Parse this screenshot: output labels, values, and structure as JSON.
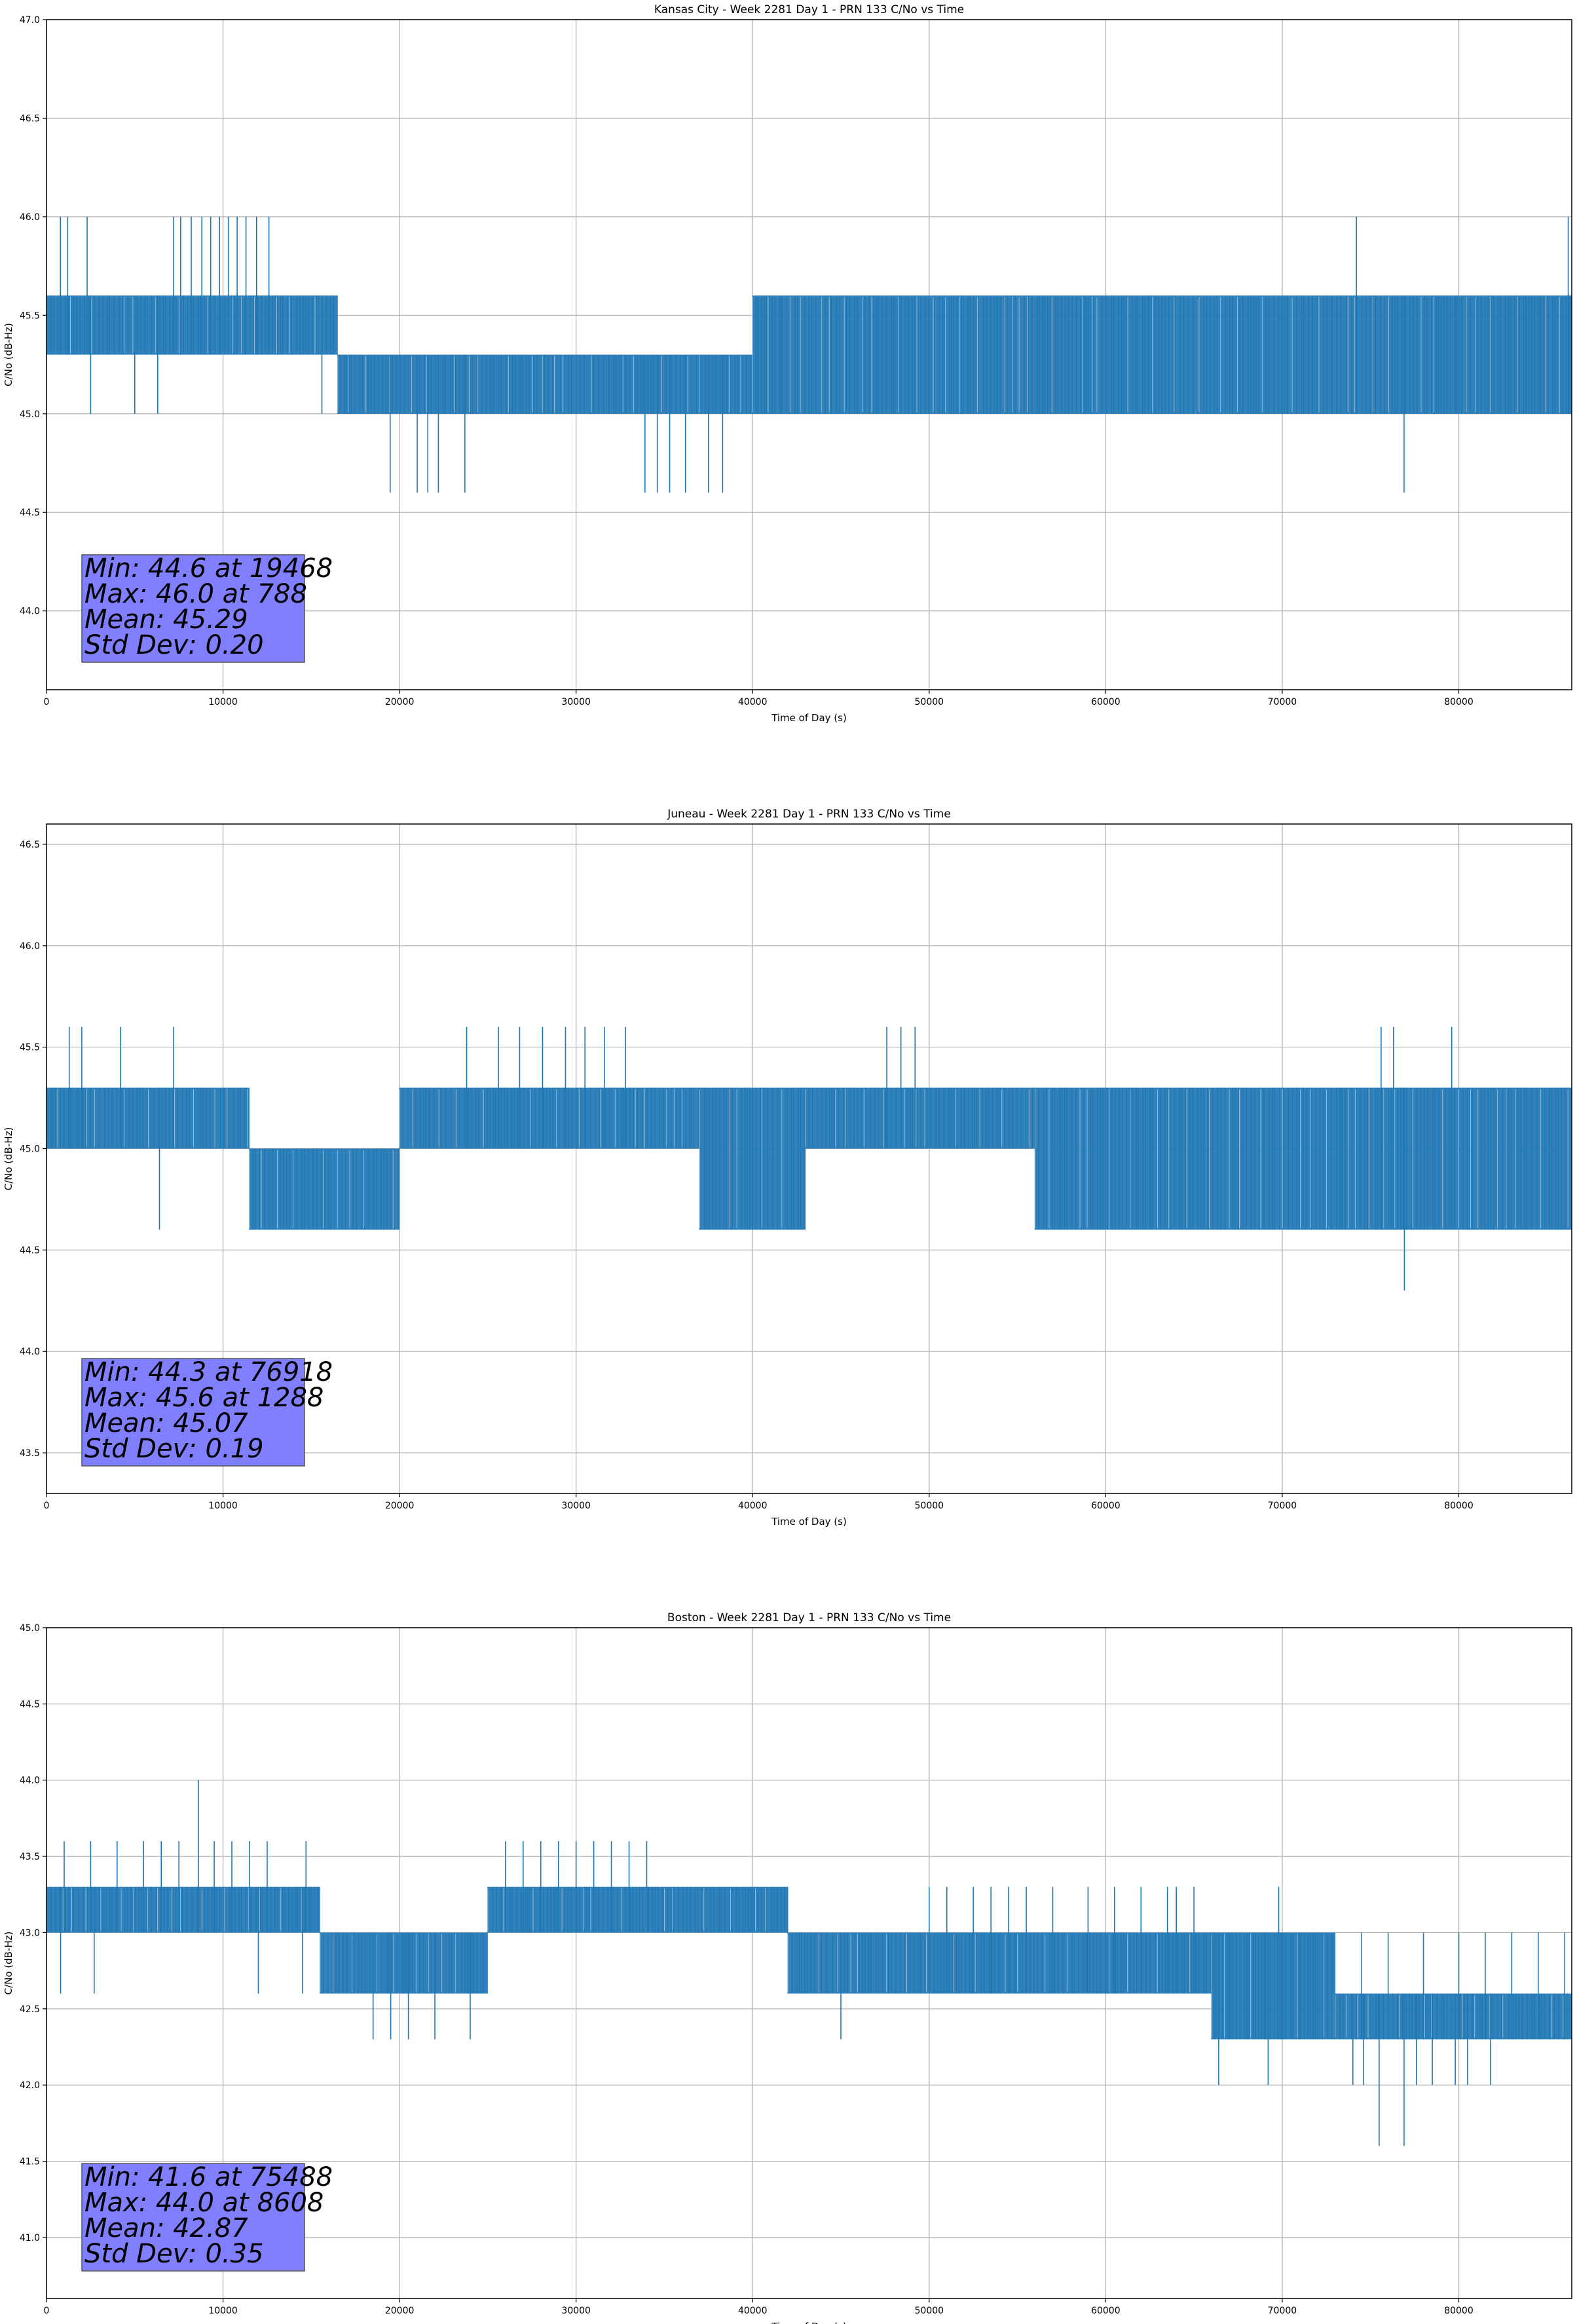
{
  "chart_data": [
    {
      "type": "line",
      "title": "Kansas City - Week 2281 Day 1 - PRN 133 C/No vs Time",
      "xlabel": "Time of Day (s)",
      "ylabel": "C/No (dB-Hz)",
      "xlim": [
        0,
        86400
      ],
      "ylim": [
        43.6,
        47.0
      ],
      "x_ticks": [
        0,
        10000,
        20000,
        30000,
        40000,
        50000,
        60000,
        70000,
        80000
      ],
      "y_ticks": [
        44.0,
        44.5,
        45.0,
        45.5,
        46.0,
        46.5,
        47.0
      ],
      "x_tick_labels": [
        "0",
        "10000",
        "20000",
        "30000",
        "40000",
        "50000",
        "60000",
        "70000",
        "80000"
      ],
      "y_tick_labels": [
        "44.0",
        "44.5",
        "45.0",
        "45.5",
        "46.0",
        "46.5",
        "47.0"
      ],
      "grid": true,
      "series_color": "#1f77b4",
      "segments": [
        {
          "x": [
            0,
            16500
          ],
          "lo": 45.3,
          "hi": 45.6
        },
        {
          "x": [
            16500,
            40000
          ],
          "lo": 45.0,
          "hi": 45.3
        },
        {
          "x": [
            40000,
            59500
          ],
          "lo": 45.0,
          "hi": 45.6
        },
        {
          "x": [
            59500,
            86400
          ],
          "lo": 45.0,
          "hi": 45.6
        }
      ],
      "spikes": [
        {
          "x": 788,
          "hi": 46.0
        },
        {
          "x": 1200,
          "hi": 46.0
        },
        {
          "x": 2300,
          "hi": 46.0
        },
        {
          "x": 7200,
          "hi": 46.0
        },
        {
          "x": 7600,
          "hi": 46.0
        },
        {
          "x": 8200,
          "hi": 46.0
        },
        {
          "x": 8800,
          "hi": 46.0
        },
        {
          "x": 9300,
          "hi": 46.0
        },
        {
          "x": 9800,
          "hi": 46.0
        },
        {
          "x": 10300,
          "hi": 46.0
        },
        {
          "x": 10800,
          "hi": 46.0
        },
        {
          "x": 11300,
          "hi": 46.0
        },
        {
          "x": 11900,
          "hi": 46.0
        },
        {
          "x": 12600,
          "hi": 46.0
        },
        {
          "x": 74200,
          "hi": 46.0
        },
        {
          "x": 86200,
          "hi": 46.0
        },
        {
          "x": 2500,
          "lo": 45.0
        },
        {
          "x": 5000,
          "lo": 45.0
        },
        {
          "x": 6300,
          "lo": 45.0
        },
        {
          "x": 15600,
          "lo": 45.0
        },
        {
          "x": 19468,
          "lo": 44.6
        },
        {
          "x": 21000,
          "lo": 44.6
        },
        {
          "x": 21600,
          "lo": 44.6
        },
        {
          "x": 22200,
          "lo": 44.6
        },
        {
          "x": 23700,
          "lo": 44.6
        },
        {
          "x": 33900,
          "lo": 44.6
        },
        {
          "x": 34600,
          "lo": 44.6
        },
        {
          "x": 35300,
          "lo": 44.6
        },
        {
          "x": 36200,
          "lo": 44.6
        },
        {
          "x": 37500,
          "lo": 44.6
        },
        {
          "x": 38300,
          "lo": 44.6
        },
        {
          "x": 76900,
          "lo": 44.6
        }
      ],
      "stats": [
        "Min: 44.6 at 19468",
        "Max: 46.0 at 788",
        "Mean: 45.29",
        "Std Dev: 0.20"
      ]
    },
    {
      "type": "line",
      "title": "Juneau - Week 2281 Day 1 - PRN 133 C/No vs Time",
      "xlabel": "Time of Day (s)",
      "ylabel": "C/No (dB-Hz)",
      "xlim": [
        0,
        86400
      ],
      "ylim": [
        43.3,
        46.6
      ],
      "x_ticks": [
        0,
        10000,
        20000,
        30000,
        40000,
        50000,
        60000,
        70000,
        80000
      ],
      "y_ticks": [
        43.5,
        44.0,
        44.5,
        45.0,
        45.5,
        46.0,
        46.5
      ],
      "x_tick_labels": [
        "0",
        "10000",
        "20000",
        "30000",
        "40000",
        "50000",
        "60000",
        "70000",
        "80000"
      ],
      "y_tick_labels": [
        "43.5",
        "44.0",
        "44.5",
        "45.0",
        "45.5",
        "46.0",
        "46.5"
      ],
      "grid": true,
      "series_color": "#1f77b4",
      "segments": [
        {
          "x": [
            0,
            11500
          ],
          "lo": 45.0,
          "hi": 45.3
        },
        {
          "x": [
            11500,
            20000
          ],
          "lo": 44.6,
          "hi": 45.0
        },
        {
          "x": [
            20000,
            37000
          ],
          "lo": 45.0,
          "hi": 45.3
        },
        {
          "x": [
            37000,
            43000
          ],
          "lo": 44.6,
          "hi": 45.3
        },
        {
          "x": [
            43000,
            56000
          ],
          "lo": 45.0,
          "hi": 45.3
        },
        {
          "x": [
            56000,
            67000
          ],
          "lo": 44.6,
          "hi": 45.3
        },
        {
          "x": [
            67000,
            80000
          ],
          "lo": 44.6,
          "hi": 45.3
        },
        {
          "x": [
            80000,
            86400
          ],
          "lo": 44.6,
          "hi": 45.3
        }
      ],
      "spikes": [
        {
          "x": 1288,
          "hi": 45.6
        },
        {
          "x": 2000,
          "hi": 45.6
        },
        {
          "x": 4200,
          "hi": 45.6
        },
        {
          "x": 7200,
          "hi": 45.6
        },
        {
          "x": 23800,
          "hi": 45.6
        },
        {
          "x": 25600,
          "hi": 45.6
        },
        {
          "x": 26800,
          "hi": 45.6
        },
        {
          "x": 28100,
          "hi": 45.6
        },
        {
          "x": 29400,
          "hi": 45.6
        },
        {
          "x": 30500,
          "hi": 45.6
        },
        {
          "x": 31600,
          "hi": 45.6
        },
        {
          "x": 32800,
          "hi": 45.6
        },
        {
          "x": 47600,
          "hi": 45.6
        },
        {
          "x": 48400,
          "hi": 45.6
        },
        {
          "x": 49200,
          "hi": 45.6
        },
        {
          "x": 75600,
          "hi": 45.6
        },
        {
          "x": 76300,
          "hi": 45.6
        },
        {
          "x": 79600,
          "hi": 45.6
        },
        {
          "x": 6400,
          "lo": 44.6
        },
        {
          "x": 76918,
          "lo": 44.3
        }
      ],
      "stats": [
        "Min: 44.3 at 76918",
        "Max: 45.6 at 1288",
        "Mean: 45.07",
        "Std Dev: 0.19"
      ]
    },
    {
      "type": "line",
      "title": "Boston - Week 2281 Day 1 - PRN 133 C/No vs Time",
      "xlabel": "Time of Day (s)",
      "ylabel": "C/No (dB-Hz)",
      "xlim": [
        0,
        86400
      ],
      "ylim": [
        40.6,
        45.0
      ],
      "x_ticks": [
        0,
        10000,
        20000,
        30000,
        40000,
        50000,
        60000,
        70000,
        80000
      ],
      "y_ticks": [
        41.0,
        41.5,
        42.0,
        42.5,
        43.0,
        43.5,
        44.0,
        44.5,
        45.0
      ],
      "x_tick_labels": [
        "0",
        "10000",
        "20000",
        "30000",
        "40000",
        "50000",
        "60000",
        "70000",
        "80000"
      ],
      "y_tick_labels": [
        "41.0",
        "41.5",
        "42.0",
        "42.5",
        "43.0",
        "43.5",
        "44.0",
        "44.5",
        "45.0"
      ],
      "grid": true,
      "series_color": "#1f77b4",
      "segments": [
        {
          "x": [
            0,
            15500
          ],
          "lo": 43.0,
          "hi": 43.3
        },
        {
          "x": [
            15500,
            25000
          ],
          "lo": 42.6,
          "hi": 43.0
        },
        {
          "x": [
            25000,
            35000
          ],
          "lo": 43.0,
          "hi": 43.3
        },
        {
          "x": [
            35000,
            42000
          ],
          "lo": 43.0,
          "hi": 43.3
        },
        {
          "x": [
            42000,
            55000
          ],
          "lo": 42.6,
          "hi": 43.0
        },
        {
          "x": [
            55000,
            66000
          ],
          "lo": 42.6,
          "hi": 43.0
        },
        {
          "x": [
            66000,
            73000
          ],
          "lo": 42.3,
          "hi": 43.0
        },
        {
          "x": [
            73000,
            86400
          ],
          "lo": 42.3,
          "hi": 42.6
        }
      ],
      "spikes": [
        {
          "x": 800,
          "lo": 42.6
        },
        {
          "x": 2700,
          "lo": 42.6
        },
        {
          "x": 12000,
          "lo": 42.6
        },
        {
          "x": 14500,
          "lo": 42.6
        },
        {
          "x": 1000,
          "hi": 43.6
        },
        {
          "x": 2500,
          "hi": 43.6
        },
        {
          "x": 4000,
          "hi": 43.6
        },
        {
          "x": 5500,
          "hi": 43.6
        },
        {
          "x": 6500,
          "hi": 43.6
        },
        {
          "x": 7500,
          "hi": 43.6
        },
        {
          "x": 8608,
          "hi": 44.0
        },
        {
          "x": 9500,
          "hi": 43.6
        },
        {
          "x": 10500,
          "hi": 43.6
        },
        {
          "x": 11500,
          "hi": 43.6
        },
        {
          "x": 12500,
          "hi": 43.6
        },
        {
          "x": 14700,
          "hi": 43.6
        },
        {
          "x": 26000,
          "hi": 43.6
        },
        {
          "x": 27000,
          "hi": 43.6
        },
        {
          "x": 28000,
          "hi": 43.6
        },
        {
          "x": 29000,
          "hi": 43.6
        },
        {
          "x": 30000,
          "hi": 43.6
        },
        {
          "x": 31000,
          "hi": 43.6
        },
        {
          "x": 32000,
          "hi": 43.6
        },
        {
          "x": 33000,
          "hi": 43.6
        },
        {
          "x": 34000,
          "hi": 43.6
        },
        {
          "x": 18500,
          "lo": 42.3
        },
        {
          "x": 19500,
          "lo": 42.3
        },
        {
          "x": 20500,
          "lo": 42.3
        },
        {
          "x": 22000,
          "lo": 42.3
        },
        {
          "x": 24000,
          "lo": 42.3
        },
        {
          "x": 45000,
          "lo": 42.3
        },
        {
          "x": 67000,
          "lo": 42.3
        },
        {
          "x": 68000,
          "lo": 42.3
        },
        {
          "x": 69000,
          "lo": 42.3
        },
        {
          "x": 70000,
          "lo": 42.3
        },
        {
          "x": 71000,
          "lo": 42.3
        },
        {
          "x": 72000,
          "lo": 42.3
        },
        {
          "x": 74000,
          "lo": 42.0
        },
        {
          "x": 74600,
          "lo": 42.0
        },
        {
          "x": 75488,
          "lo": 41.6
        },
        {
          "x": 76900,
          "lo": 41.6
        },
        {
          "x": 77600,
          "lo": 42.0
        },
        {
          "x": 78500,
          "lo": 42.0
        },
        {
          "x": 79800,
          "lo": 42.0
        },
        {
          "x": 81800,
          "lo": 42.0
        },
        {
          "x": 80500,
          "lo": 42.0
        },
        {
          "x": 66400,
          "lo": 42.0
        },
        {
          "x": 69200,
          "lo": 42.0
        },
        {
          "x": 55500,
          "hi": 43.3
        },
        {
          "x": 57000,
          "hi": 43.3
        },
        {
          "x": 59000,
          "hi": 43.3
        },
        {
          "x": 60500,
          "hi": 43.3
        },
        {
          "x": 62000,
          "hi": 43.3
        },
        {
          "x": 63500,
          "hi": 43.3
        },
        {
          "x": 64000,
          "hi": 43.3
        },
        {
          "x": 65000,
          "hi": 43.3
        },
        {
          "x": 69800,
          "hi": 43.3
        },
        {
          "x": 74500,
          "hi": 43.0
        },
        {
          "x": 76000,
          "hi": 43.0
        },
        {
          "x": 78000,
          "hi": 43.0
        },
        {
          "x": 80000,
          "hi": 43.0
        },
        {
          "x": 81500,
          "hi": 43.0
        },
        {
          "x": 83000,
          "hi": 43.0
        },
        {
          "x": 84500,
          "hi": 43.0
        },
        {
          "x": 86000,
          "hi": 43.0
        },
        {
          "x": 50000,
          "hi": 43.3
        },
        {
          "x": 51000,
          "hi": 43.3
        },
        {
          "x": 52500,
          "hi": 43.3
        },
        {
          "x": 53500,
          "hi": 43.3
        },
        {
          "x": 54500,
          "hi": 43.3
        }
      ],
      "stats": [
        "Min: 41.6 at 75488",
        "Max: 44.0 at 8608",
        "Mean: 42.87",
        "Std Dev: 0.35"
      ]
    }
  ]
}
